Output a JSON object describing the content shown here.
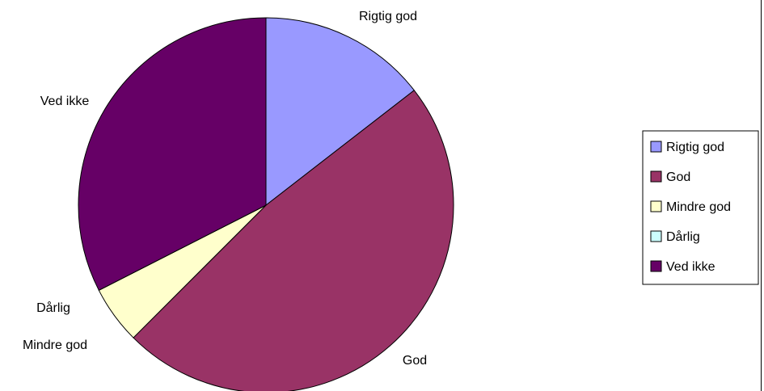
{
  "chart_data": {
    "type": "pie",
    "categories": [
      "Rigtig god",
      "God",
      "Mindre god",
      "Dårlig",
      "Ved ikke"
    ],
    "values": [
      14.5,
      48,
      5,
      0,
      32.5
    ],
    "colors": [
      "#9999ff",
      "#993366",
      "#ffffcc",
      "#ccffff",
      "#660066"
    ],
    "slice_labels": [
      "Rigtig god",
      "God",
      "Mindre god",
      "Dårlig",
      "Ved ikke"
    ],
    "legend": {
      "placement": "right",
      "entries": [
        "Rigtig god",
        "God",
        "Mindre god",
        "Dårlig",
        "Ved ikke"
      ]
    }
  }
}
